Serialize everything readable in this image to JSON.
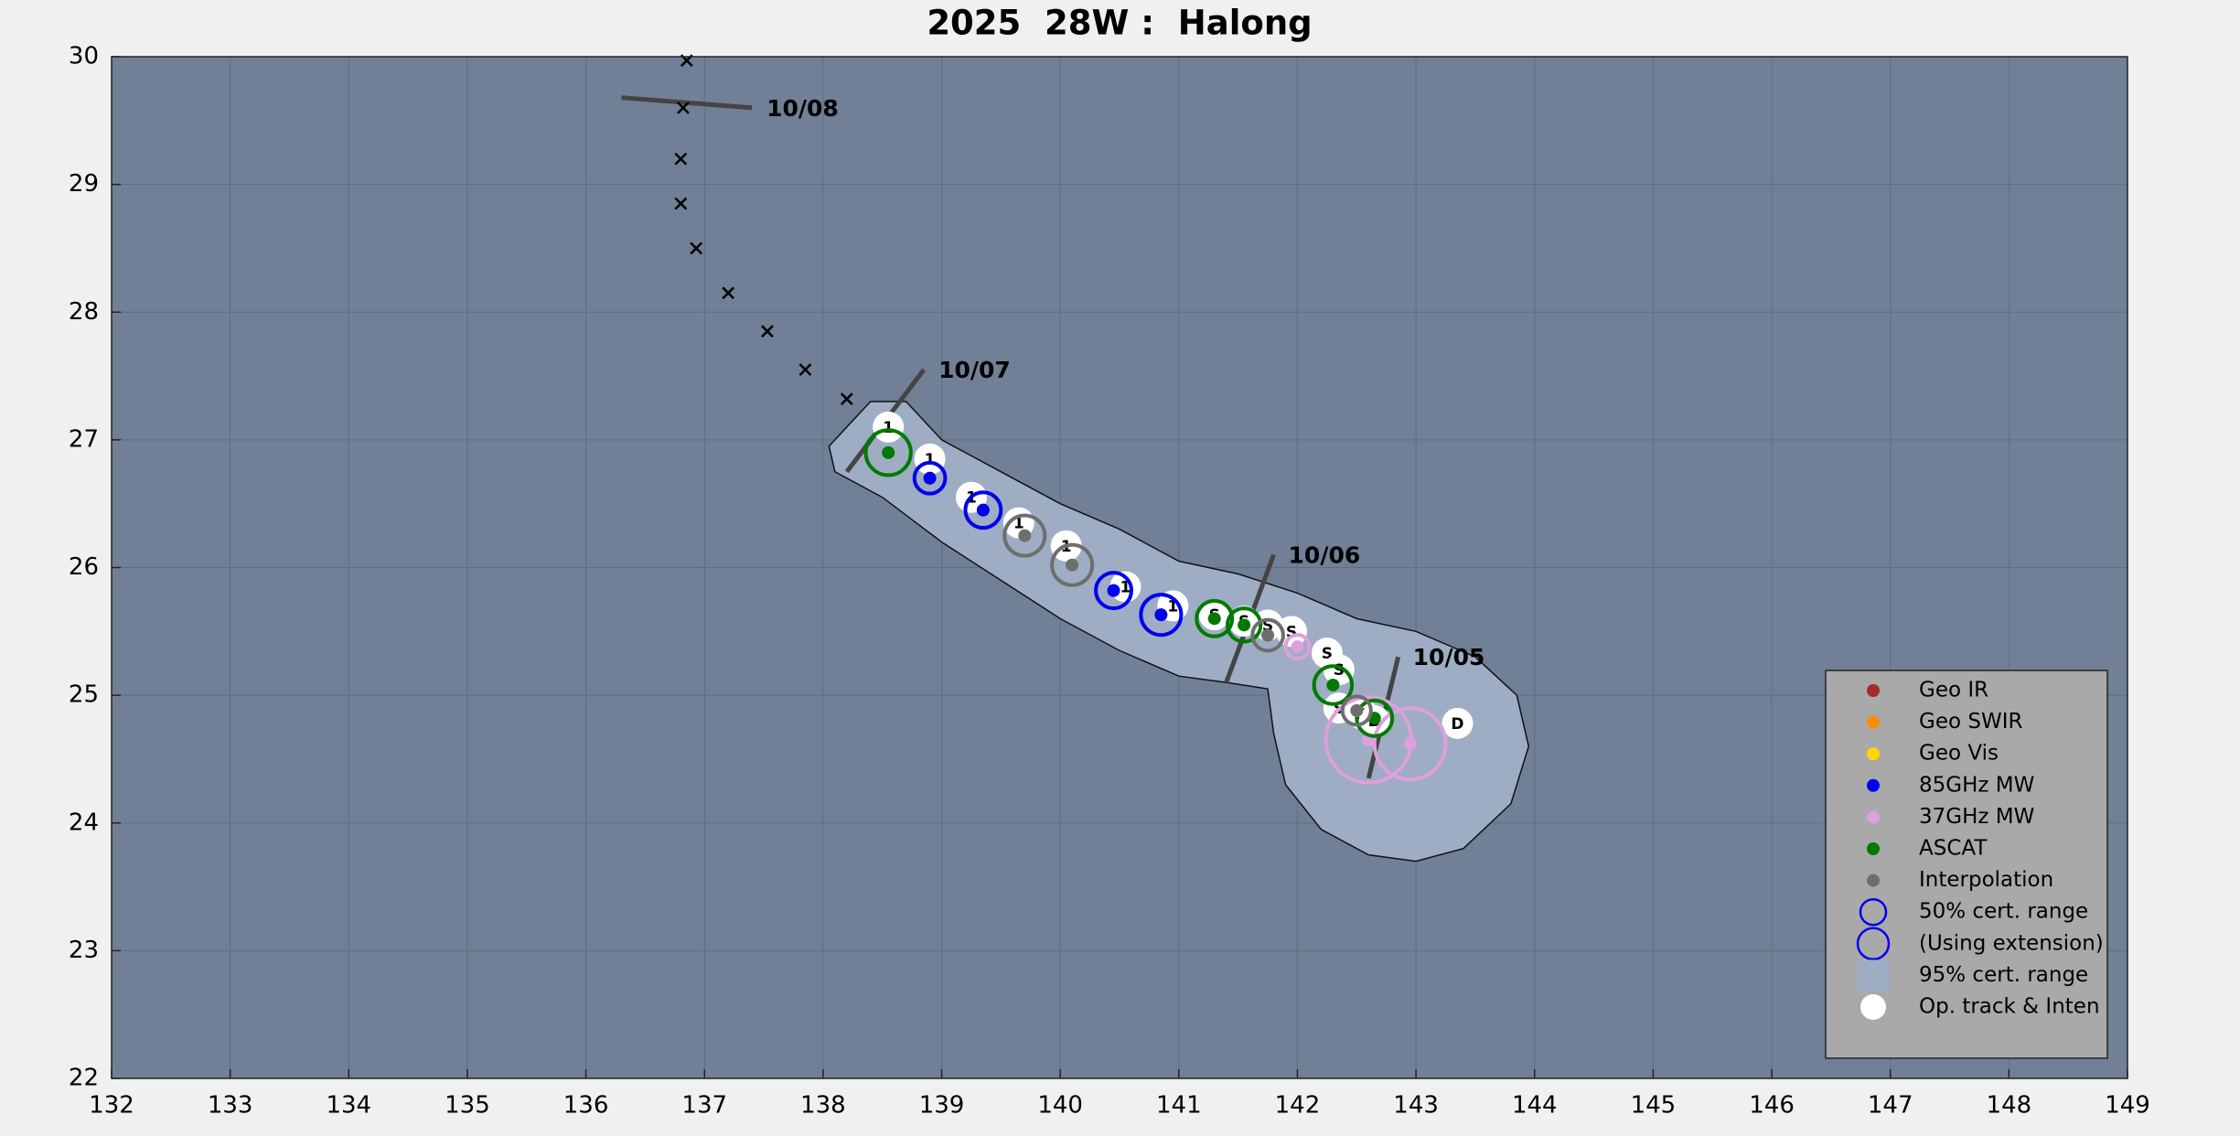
{
  "chart_data": {
    "type": "track",
    "title": "2025  28W :  Halong",
    "xlim": [
      132,
      149
    ],
    "ylim": [
      22,
      30
    ],
    "xticks": [
      132,
      133,
      134,
      135,
      136,
      137,
      138,
      139,
      140,
      141,
      142,
      143,
      144,
      145,
      146,
      147,
      148,
      149
    ],
    "yticks": [
      22,
      23,
      24,
      25,
      26,
      27,
      28,
      29,
      30
    ],
    "grid": true,
    "legend_position": "lower right",
    "uncertainty_area": {
      "name": "95% cert. range",
      "color": "#9eadc4",
      "x": [
        138.2,
        138.4,
        138.7,
        139.0,
        139.5,
        140.0,
        140.5,
        141.0,
        141.5,
        142.0,
        142.5,
        143.0,
        143.5,
        143.85,
        143.95,
        143.8,
        143.4,
        143.0,
        142.6,
        142.2,
        141.9,
        141.8,
        141.75,
        141.4,
        141.0,
        140.5,
        140.0,
        139.5,
        139.0,
        138.5,
        138.1,
        138.05
      ],
      "y": [
        27.1,
        27.3,
        27.3,
        27.0,
        26.75,
        26.5,
        26.3,
        26.05,
        25.95,
        25.8,
        25.6,
        25.5,
        25.3,
        25.0,
        24.6,
        24.15,
        23.8,
        23.7,
        23.75,
        23.95,
        24.3,
        24.7,
        25.05,
        25.1,
        25.15,
        25.35,
        25.6,
        25.9,
        26.2,
        26.55,
        26.75,
        26.95
      ]
    },
    "forecast": {
      "x": [
        136.85,
        136.82,
        136.8,
        136.8,
        136.93,
        137.2,
        137.53,
        137.85,
        138.2
      ],
      "y": [
        29.97,
        29.6,
        29.2,
        28.85,
        28.5,
        28.15,
        27.85,
        27.55,
        27.32
      ]
    },
    "date_marks": [
      {
        "label": "10/08",
        "x": [
          136.3,
          137.4
        ],
        "y": [
          29.68,
          29.6
        ]
      },
      {
        "label": "10/07",
        "x": [
          138.2,
          138.85
        ],
        "y": [
          26.75,
          27.55
        ]
      },
      {
        "label": "10/06",
        "x": [
          141.4,
          141.8
        ],
        "y": [
          25.1,
          26.1
        ]
      },
      {
        "label": "10/05",
        "x": [
          142.6,
          142.85
        ],
        "y": [
          24.35,
          25.3
        ]
      }
    ],
    "op_track": {
      "name": "Op. track & Inten",
      "x": [
        138.55,
        138.9,
        139.25,
        139.65,
        140.05,
        140.55,
        140.95,
        141.3,
        141.55,
        141.75,
        141.95,
        142.25,
        142.35,
        142.35,
        142.55,
        142.65,
        143.35
      ],
      "y": [
        27.1,
        26.85,
        26.55,
        26.35,
        26.17,
        25.85,
        25.7,
        25.63,
        25.58,
        25.55,
        25.5,
        25.33,
        25.2,
        24.9,
        24.85,
        24.8,
        24.78
      ],
      "labels": [
        "1",
        "1",
        "1",
        "1",
        "1",
        "1",
        "1",
        "S",
        "S",
        "S",
        "S",
        "S",
        "S",
        "S",
        "S",
        "D",
        "D"
      ]
    },
    "series": [
      {
        "name": "Geo IR",
        "color": "#a52a2a",
        "x": [],
        "y": [],
        "radius": []
      },
      {
        "name": "Geo SWIR",
        "color": "#ff8c00",
        "x": [],
        "y": [],
        "radius": []
      },
      {
        "name": "Geo Vis",
        "color": "#ffd700",
        "x": [],
        "y": [],
        "radius": []
      },
      {
        "name": "85GHz MW",
        "color": "#0000ee",
        "x": [
          138.9,
          139.35,
          140.45,
          140.85
        ],
        "y": [
          26.7,
          26.45,
          25.82,
          25.63
        ],
        "radius": [
          0.13,
          0.15,
          0.15,
          0.17
        ]
      },
      {
        "name": "37GHz MW",
        "color": "#dda0dd",
        "x": [
          142.0,
          142.6,
          142.95
        ],
        "y": [
          25.38,
          24.65,
          24.62
        ],
        "radius": [
          0.1,
          0.36,
          0.3
        ]
      },
      {
        "name": "ASCAT",
        "color": "#007a00",
        "x": [
          138.55,
          141.3,
          141.55,
          142.3,
          142.65
        ],
        "y": [
          26.9,
          25.6,
          25.55,
          25.08,
          24.82
        ],
        "radius": [
          0.19,
          0.15,
          0.14,
          0.16,
          0.15
        ]
      },
      {
        "name": "Interpolation",
        "color": "#6e6e6e",
        "x": [
          139.7,
          140.1,
          141.75,
          142.5
        ],
        "y": [
          26.25,
          26.02,
          25.47,
          24.88
        ],
        "radius": [
          0.17,
          0.17,
          0.13,
          0.12
        ]
      }
    ],
    "legend_extra": [
      "50% cert. range",
      "(Using extension)"
    ]
  }
}
